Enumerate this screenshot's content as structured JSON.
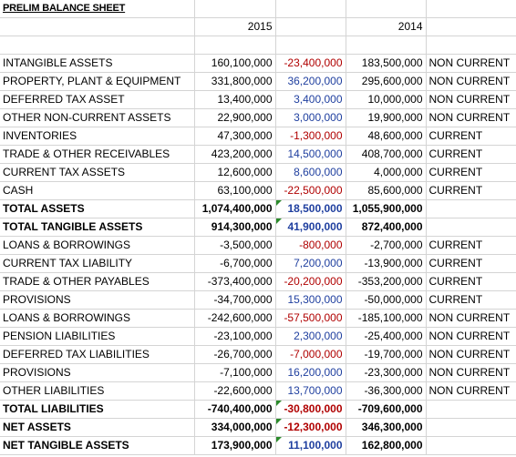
{
  "title": "PRELIM BALANCE SHEET",
  "year_2015": "2015",
  "year_2014": "2014",
  "rows": [
    {
      "label": "INTANGIBLE ASSETS",
      "v2015": "160,100,000",
      "change": "-23,400,000",
      "v2014": "183,500,000",
      "class": "NON CURRENT"
    },
    {
      "label": "PROPERTY, PLANT & EQUIPMENT",
      "v2015": "331,800,000",
      "change": "36,200,000",
      "v2014": "295,600,000",
      "class": "NON CURRENT"
    },
    {
      "label": "DEFERRED TAX ASSET",
      "v2015": "13,400,000",
      "change": "3,400,000",
      "v2014": "10,000,000",
      "class": "NON CURRENT"
    },
    {
      "label": "OTHER NON-CURRENT ASSETS",
      "v2015": "22,900,000",
      "change": "3,000,000",
      "v2014": "19,900,000",
      "class": "NON CURRENT"
    },
    {
      "label": "INVENTORIES",
      "v2015": "47,300,000",
      "change": "-1,300,000",
      "v2014": "48,600,000",
      "class": "CURRENT"
    },
    {
      "label": "TRADE & OTHER RECEIVABLES",
      "v2015": "423,200,000",
      "change": "14,500,000",
      "v2014": "408,700,000",
      "class": "CURRENT"
    },
    {
      "label": "CURRENT TAX ASSETS",
      "v2015": "12,600,000",
      "change": "8,600,000",
      "v2014": "4,000,000",
      "class": "CURRENT"
    },
    {
      "label": "CASH",
      "v2015": "63,100,000",
      "change": "-22,500,000",
      "v2014": "85,600,000",
      "class": "CURRENT"
    },
    {
      "label": "TOTAL ASSETS",
      "v2015": "1,074,400,000",
      "change": "18,500,000",
      "v2014": "1,055,900,000",
      "class": "",
      "bold": true,
      "warn": true
    },
    {
      "label": "TOTAL TANGIBLE ASSETS",
      "v2015": "914,300,000",
      "change": "41,900,000",
      "v2014": "872,400,000",
      "class": "",
      "bold": true,
      "warn": true
    },
    {
      "label": "LOANS & BORROWINGS",
      "v2015": "-3,500,000",
      "change": "-800,000",
      "v2014": "-2,700,000",
      "class": "CURRENT"
    },
    {
      "label": "CURRENT TAX LIABILITY",
      "v2015": "-6,700,000",
      "change": "7,200,000",
      "v2014": "-13,900,000",
      "class": "CURRENT"
    },
    {
      "label": "TRADE & OTHER PAYABLES",
      "v2015": "-373,400,000",
      "change": "-20,200,000",
      "v2014": "-353,200,000",
      "class": "CURRENT"
    },
    {
      "label": "PROVISIONS",
      "v2015": "-34,700,000",
      "change": "15,300,000",
      "v2014": "-50,000,000",
      "class": "CURRENT"
    },
    {
      "label": "LOANS & BORROWINGS",
      "v2015": "-242,600,000",
      "change": "-57,500,000",
      "v2014": "-185,100,000",
      "class": "NON CURRENT"
    },
    {
      "label": "PENSION LIABILITIES",
      "v2015": "-23,100,000",
      "change": "2,300,000",
      "v2014": "-25,400,000",
      "class": "NON CURRENT"
    },
    {
      "label": "DEFERRED TAX LIABILITIES",
      "v2015": "-26,700,000",
      "change": "-7,000,000",
      "v2014": "-19,700,000",
      "class": "NON CURRENT"
    },
    {
      "label": "PROVISIONS",
      "v2015": "-7,100,000",
      "change": "16,200,000",
      "v2014": "-23,300,000",
      "class": "NON CURRENT"
    },
    {
      "label": "OTHER LIABILITIES",
      "v2015": "-22,600,000",
      "change": "13,700,000",
      "v2014": "-36,300,000",
      "class": "NON CURRENT"
    },
    {
      "label": "TOTAL LIABILITIES",
      "v2015": "-740,400,000",
      "change": "-30,800,000",
      "v2014": "-709,600,000",
      "class": "",
      "bold": true,
      "warn": true
    },
    {
      "label": "NET ASSETS",
      "v2015": "334,000,000",
      "change": "-12,300,000",
      "v2014": "346,300,000",
      "class": "",
      "bold": true,
      "warn": true
    },
    {
      "label": "NET TANGIBLE ASSETS",
      "v2015": "173,900,000",
      "change": "11,100,000",
      "v2014": "162,800,000",
      "class": "",
      "bold": true,
      "warn": true
    }
  ],
  "colors": {
    "positive_change": "#1f3f9f",
    "negative_change": "#b00000",
    "grid": "#d4d4d4",
    "error_marker": "#2a8a2a"
  }
}
